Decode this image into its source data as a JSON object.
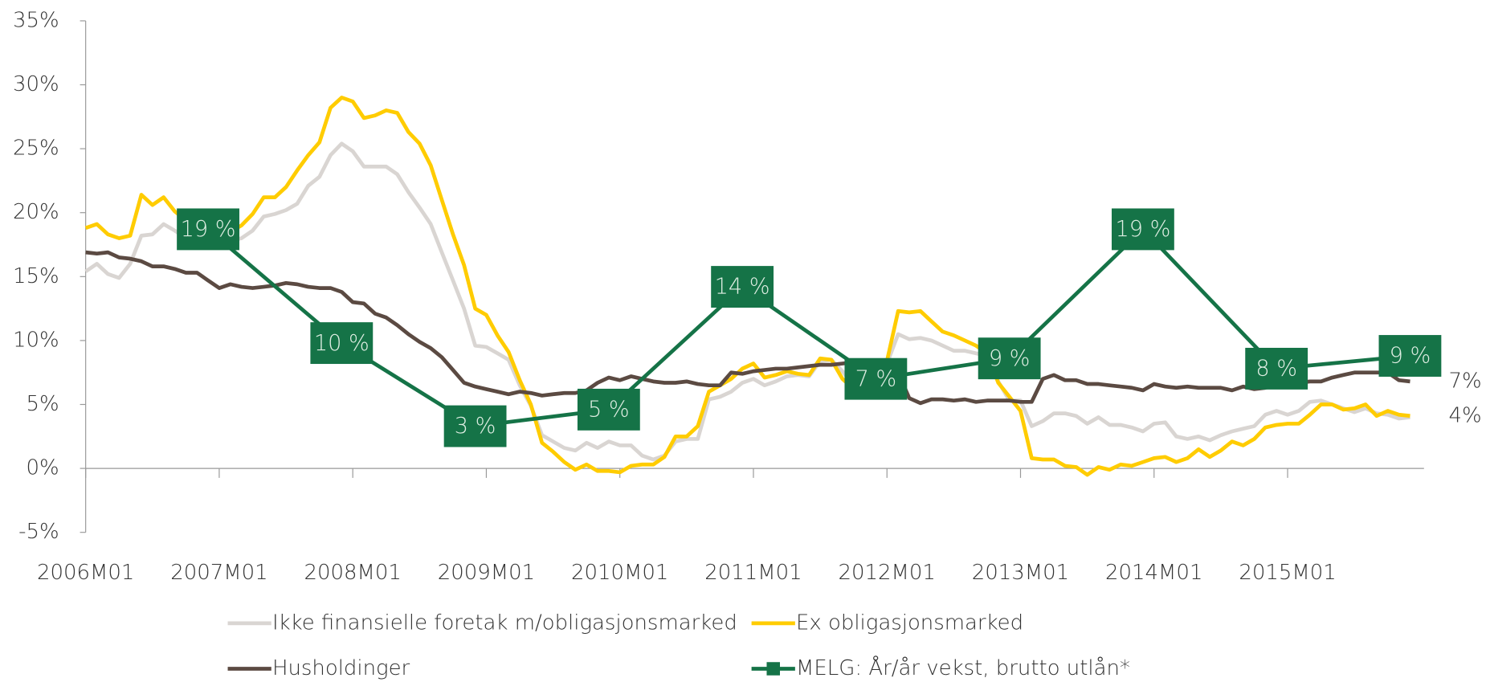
{
  "chart_data": {
    "type": "line",
    "categories": [
      "2006M01",
      null,
      null,
      null,
      null,
      null,
      null,
      null,
      null,
      null,
      null,
      null,
      "2007M01",
      null,
      null,
      null,
      null,
      null,
      null,
      null,
      null,
      null,
      null,
      null,
      "2008M01",
      null,
      null,
      null,
      null,
      null,
      null,
      null,
      null,
      null,
      null,
      null,
      "2009M01",
      null,
      null,
      null,
      null,
      null,
      null,
      null,
      null,
      null,
      null,
      null,
      "2010M01",
      null,
      null,
      null,
      null,
      null,
      null,
      null,
      null,
      null,
      null,
      null,
      "2011M01",
      null,
      null,
      null,
      null,
      null,
      null,
      null,
      null,
      null,
      null,
      null,
      "2012M01",
      null,
      null,
      null,
      null,
      null,
      null,
      null,
      null,
      null,
      null,
      null,
      "2013M01",
      null,
      null,
      null,
      null,
      null,
      null,
      null,
      null,
      null,
      null,
      null,
      "2014M01",
      null,
      null,
      null,
      null,
      null,
      null,
      null,
      null,
      null,
      null,
      null,
      "2015M01",
      null,
      null,
      null,
      null,
      null,
      null,
      null,
      null,
      null,
      null,
      null
    ],
    "ylim": [
      -5,
      35
    ],
    "yticks": [
      {
        "value": -5,
        "label": "-5%"
      },
      {
        "value": 0,
        "label": "0%"
      },
      {
        "value": 5,
        "label": "5%"
      },
      {
        "value": 10,
        "label": "10%"
      },
      {
        "value": 15,
        "label": "15%"
      },
      {
        "value": 20,
        "label": "20%"
      },
      {
        "value": 25,
        "label": "25%"
      },
      {
        "value": 30,
        "label": "30%"
      },
      {
        "value": 35,
        "label": "35%"
      }
    ],
    "series": [
      {
        "name": "Ikke finansielle foretak m/obligasjonsmarked",
        "color": "#d9d5d2",
        "values": [
          15.4,
          16.0,
          15.2,
          14.9,
          16.0,
          18.2,
          18.3,
          19.1,
          18.6,
          18.0,
          17.8,
          17.7,
          18.0,
          17.8,
          18.0,
          18.6,
          19.7,
          19.9,
          20.2,
          20.7,
          22.1,
          22.8,
          24.5,
          25.4,
          24.8,
          23.6,
          23.6,
          23.6,
          23.0,
          21.6,
          20.4,
          19.1,
          16.9,
          14.7,
          12.5,
          9.6,
          9.5,
          9.0,
          8.5,
          6.5,
          4.9,
          2.6,
          2.1,
          1.6,
          1.4,
          2.0,
          1.6,
          2.1,
          1.8,
          1.8,
          1.0,
          0.7,
          1.0,
          2.1,
          2.3,
          2.3,
          5.4,
          5.6,
          6.0,
          6.7,
          7.0,
          6.5,
          6.8,
          7.2,
          7.3,
          7.2,
          8.4,
          8.5,
          7.6,
          6.5,
          7.1,
          7.6,
          8.2,
          10.5,
          10.1,
          10.2,
          10.0,
          9.6,
          9.2,
          9.2,
          9.0,
          8.8,
          6.8,
          5.3,
          5.3,
          3.3,
          3.7,
          4.3,
          4.3,
          4.1,
          3.5,
          4.0,
          3.4,
          3.4,
          3.2,
          2.9,
          3.5,
          3.6,
          2.5,
          2.3,
          2.5,
          2.2,
          2.6,
          2.9,
          3.1,
          3.3,
          4.2,
          4.5,
          4.2,
          4.5,
          5.2,
          5.3,
          5.0,
          4.7,
          4.4,
          4.7,
          4.3,
          4.2,
          3.9,
          4.0
        ]
      },
      {
        "name": "Ex obligasjonsmarked",
        "color": "#ffcc00",
        "end_label": "4%",
        "values": [
          18.8,
          19.1,
          18.3,
          18.0,
          18.2,
          21.4,
          20.6,
          21.2,
          20.1,
          19.4,
          18.8,
          18.3,
          18.7,
          18.5,
          19.0,
          19.9,
          21.2,
          21.2,
          22.0,
          23.3,
          24.5,
          25.5,
          28.2,
          29.0,
          28.7,
          27.4,
          27.6,
          28.0,
          27.8,
          26.3,
          25.4,
          23.7,
          21.0,
          18.3,
          15.9,
          12.5,
          12.0,
          10.4,
          9.1,
          6.9,
          5.0,
          2.0,
          1.3,
          0.5,
          -0.1,
          0.3,
          -0.2,
          -0.2,
          -0.3,
          0.2,
          0.3,
          0.3,
          0.9,
          2.5,
          2.5,
          3.3,
          6.0,
          6.5,
          7.0,
          7.8,
          8.2,
          7.1,
          7.3,
          7.6,
          7.4,
          7.3,
          8.6,
          8.5,
          7.0,
          6.2,
          7.3,
          8.0,
          8.4,
          12.3,
          12.2,
          12.3,
          11.5,
          10.7,
          10.4,
          10.0,
          9.6,
          9.0,
          6.7,
          5.6,
          4.5,
          0.8,
          0.7,
          0.7,
          0.2,
          0.1,
          -0.5,
          0.1,
          -0.1,
          0.3,
          0.2,
          0.5,
          0.8,
          0.9,
          0.5,
          0.8,
          1.5,
          0.9,
          1.4,
          2.1,
          1.8,
          2.3,
          3.2,
          3.4,
          3.5,
          3.5,
          4.2,
          5.0,
          5.0,
          4.6,
          4.7,
          5.0,
          4.1,
          4.5,
          4.2,
          4.1
        ]
      },
      {
        "name": "Husholdinger",
        "color": "#5b4a42",
        "end_label": "7%",
        "values": [
          16.9,
          16.8,
          16.9,
          16.5,
          16.4,
          16.2,
          15.8,
          15.8,
          15.6,
          15.3,
          15.3,
          14.7,
          14.1,
          14.4,
          14.2,
          14.1,
          14.2,
          14.3,
          14.5,
          14.4,
          14.2,
          14.1,
          14.1,
          13.8,
          13.0,
          12.9,
          12.1,
          11.8,
          11.2,
          10.5,
          9.9,
          9.4,
          8.7,
          7.7,
          6.7,
          6.4,
          6.2,
          6.0,
          5.8,
          6.0,
          5.9,
          5.7,
          5.8,
          5.9,
          5.9,
          6.1,
          6.7,
          7.1,
          6.9,
          7.2,
          7.0,
          6.8,
          6.7,
          6.7,
          6.8,
          6.6,
          6.5,
          6.5,
          7.5,
          7.4,
          7.6,
          7.7,
          7.8,
          7.8,
          7.9,
          8.0,
          8.1,
          8.1,
          8.2,
          8.3,
          8.3,
          7.4,
          7.4,
          7.5,
          5.5,
          5.1,
          5.4,
          5.4,
          5.3,
          5.4,
          5.2,
          5.3,
          5.3,
          5.3,
          5.2,
          5.2,
          7.0,
          7.3,
          6.9,
          6.9,
          6.6,
          6.6,
          6.5,
          6.4,
          6.3,
          6.1,
          6.6,
          6.4,
          6.3,
          6.4,
          6.3,
          6.3,
          6.3,
          6.1,
          6.4,
          6.2,
          6.3,
          6.5,
          6.5,
          6.7,
          6.8,
          6.8,
          7.1,
          7.3,
          7.5,
          7.5,
          7.5,
          7.5,
          6.9,
          6.8
        ]
      },
      {
        "name": "MELG: År/år vekst, brutto utlån*",
        "color": "#157347",
        "marker": "square",
        "values": [
          null,
          null,
          null,
          null,
          null,
          null,
          null,
          null,
          null,
          null,
          null,
          18.7,
          null,
          null,
          null,
          null,
          null,
          null,
          null,
          null,
          null,
          null,
          null,
          9.8,
          null,
          null,
          null,
          null,
          null,
          null,
          null,
          null,
          null,
          null,
          null,
          3.3,
          null,
          null,
          null,
          null,
          null,
          null,
          null,
          null,
          null,
          null,
          null,
          4.6,
          null,
          null,
          null,
          null,
          null,
          null,
          null,
          null,
          null,
          null,
          null,
          14.2,
          null,
          null,
          null,
          null,
          null,
          null,
          null,
          null,
          null,
          null,
          null,
          7.0,
          null,
          null,
          null,
          null,
          null,
          null,
          null,
          null,
          null,
          null,
          null,
          8.6,
          null,
          null,
          null,
          null,
          null,
          null,
          null,
          null,
          null,
          null,
          null,
          18.7,
          null,
          null,
          null,
          null,
          null,
          null,
          null,
          null,
          null,
          null,
          null,
          7.8,
          null,
          null,
          null,
          null,
          null,
          null,
          null,
          null,
          null,
          null,
          null,
          8.8
        ],
        "value_labels": [
          null,
          null,
          null,
          null,
          null,
          null,
          null,
          null,
          null,
          null,
          null,
          "19 %",
          null,
          null,
          null,
          null,
          null,
          null,
          null,
          null,
          null,
          null,
          null,
          "10 %",
          null,
          null,
          null,
          null,
          null,
          null,
          null,
          null,
          null,
          null,
          null,
          "3 %",
          null,
          null,
          null,
          null,
          null,
          null,
          null,
          null,
          null,
          null,
          null,
          "5 %",
          null,
          null,
          null,
          null,
          null,
          null,
          null,
          null,
          null,
          null,
          null,
          "14 %",
          null,
          null,
          null,
          null,
          null,
          null,
          null,
          null,
          null,
          null,
          null,
          "7 %",
          null,
          null,
          null,
          null,
          null,
          null,
          null,
          null,
          null,
          null,
          null,
          "9 %",
          null,
          null,
          null,
          null,
          null,
          null,
          null,
          null,
          null,
          null,
          null,
          "19 %",
          null,
          null,
          null,
          null,
          null,
          null,
          null,
          null,
          null,
          null,
          null,
          "8 %",
          null,
          null,
          null,
          null,
          null,
          null,
          null,
          null,
          null,
          null,
          null,
          "9 %"
        ]
      }
    ]
  }
}
